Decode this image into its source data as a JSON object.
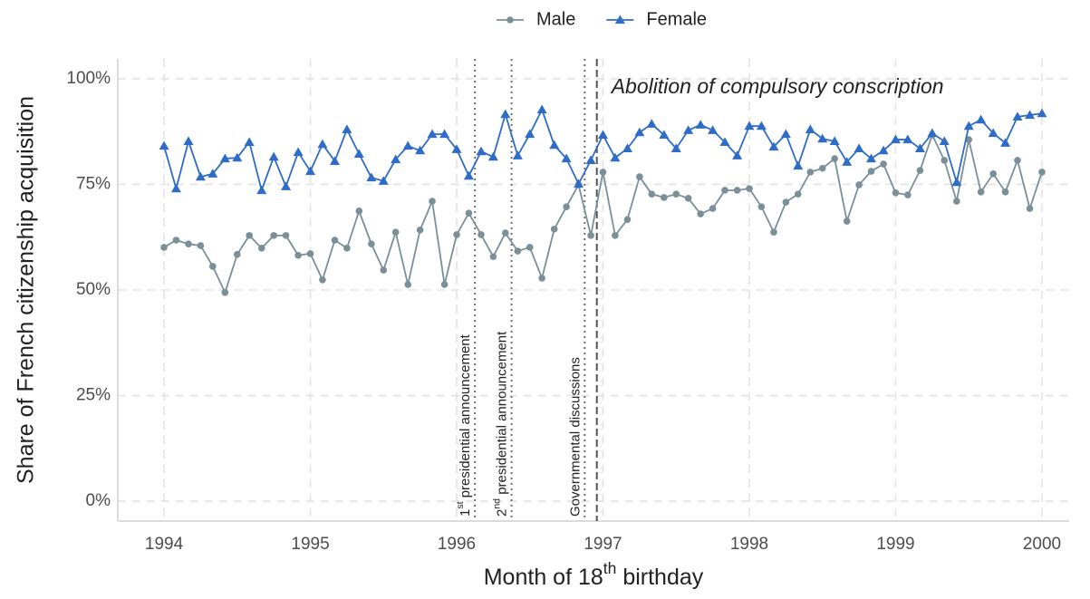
{
  "chart_data": {
    "type": "line",
    "ylabel": "Share of French citizenship acquisition",
    "xlabel": [
      {
        "text": "Month of 18"
      },
      {
        "text": "th",
        "sup": true
      },
      {
        "text": " birthday"
      }
    ],
    "x": [
      1994.0,
      1994.083,
      1994.167,
      1994.25,
      1994.333,
      1994.417,
      1994.5,
      1994.583,
      1994.667,
      1994.75,
      1994.833,
      1994.917,
      1995.0,
      1995.083,
      1995.167,
      1995.25,
      1995.333,
      1995.417,
      1995.5,
      1995.583,
      1995.667,
      1995.75,
      1995.833,
      1995.917,
      1996.0,
      1996.083,
      1996.167,
      1996.25,
      1996.333,
      1996.417,
      1996.5,
      1996.583,
      1996.667,
      1996.75,
      1996.833,
      1996.917,
      1997.0,
      1997.083,
      1997.167,
      1997.25,
      1997.333,
      1997.417,
      1997.5,
      1997.583,
      1997.667,
      1997.75,
      1997.833,
      1997.917,
      1998.0,
      1998.083,
      1998.167,
      1998.25,
      1998.333,
      1998.417,
      1998.5,
      1998.583,
      1998.667,
      1998.75,
      1998.833,
      1998.917,
      1999.0,
      1999.083,
      1999.167,
      1999.25,
      1999.333,
      1999.417,
      1999.5,
      1999.583,
      1999.667,
      1999.75,
      1999.833,
      1999.917,
      2000.0
    ],
    "series": [
      {
        "name": "Male",
        "color": "#7b8f99",
        "marker": "circle",
        "values": [
          60.1,
          61.8,
          60.9,
          60.5,
          55.6,
          49.4,
          58.4,
          62.9,
          59.9,
          62.9,
          62.9,
          58.2,
          58.6,
          52.4,
          61.8,
          59.9,
          68.7,
          60.9,
          54.7,
          63.7,
          51.3,
          64.2,
          71.0,
          51.3,
          63.1,
          68.2,
          63.1,
          57.9,
          63.5,
          59.2,
          60.1,
          52.8,
          64.4,
          69.7,
          74.9,
          62.9,
          77.9,
          62.9,
          66.7,
          76.8,
          72.7,
          71.9,
          72.7,
          71.7,
          68.0,
          69.3,
          73.6,
          73.6,
          74.0,
          69.7,
          63.7,
          70.8,
          72.7,
          77.9,
          78.8,
          81.1,
          66.3,
          74.9,
          78.1,
          79.8,
          73.0,
          72.5,
          78.3,
          86.7,
          80.7,
          71.0,
          85.6,
          73.2,
          77.5,
          73.2,
          80.7,
          69.3,
          77.9
        ]
      },
      {
        "name": "Female",
        "color": "#2f6cc7",
        "marker": "triangle",
        "values": [
          84.1,
          74.0,
          85.2,
          76.8,
          77.5,
          81.1,
          81.3,
          85.0,
          73.6,
          81.5,
          74.5,
          82.6,
          78.1,
          84.5,
          80.5,
          88.0,
          82.2,
          76.6,
          75.8,
          80.9,
          84.1,
          83.0,
          86.9,
          86.9,
          83.3,
          77.0,
          82.8,
          81.5,
          91.6,
          81.8,
          86.9,
          92.7,
          84.3,
          81.1,
          75.1,
          80.7,
          86.7,
          81.3,
          83.5,
          87.3,
          89.3,
          86.7,
          83.5,
          87.8,
          89.1,
          87.8,
          85.0,
          81.8,
          88.8,
          88.8,
          83.9,
          86.9,
          79.4,
          88.0,
          85.8,
          85.2,
          80.3,
          83.5,
          81.1,
          83.0,
          85.6,
          85.6,
          83.5,
          87.1,
          85.2,
          75.5,
          88.8,
          90.3,
          87.1,
          84.8,
          91.0,
          91.4,
          91.8
        ]
      }
    ],
    "xlim": [
      1993.684,
      2000.186
    ],
    "xticks": [
      1994,
      1995,
      1996,
      1997,
      1998,
      1999,
      2000
    ],
    "ylim": [
      -4.7,
      104.7
    ],
    "yticks": [
      {
        "value": 0,
        "label": "0%"
      },
      {
        "value": 25,
        "label": "25%"
      },
      {
        "value": 50,
        "label": "50%"
      },
      {
        "value": 75,
        "label": "75%"
      },
      {
        "value": 100,
        "label": "100%"
      }
    ],
    "grid": true,
    "legend": "top",
    "events": [
      {
        "x": 1996.125,
        "linestyle": "dotted",
        "label_pos": "vertical",
        "label": [
          {
            "text": "1"
          },
          {
            "text": "st",
            "sup": true
          },
          {
            "text": " presidential announcement"
          }
        ]
      },
      {
        "x": 1996.375,
        "linestyle": "dotted",
        "label_pos": "vertical",
        "label": [
          {
            "text": "2"
          },
          {
            "text": "nd",
            "sup": true
          },
          {
            "text": " presidential announcement"
          }
        ]
      },
      {
        "x": 1996.875,
        "linestyle": "dotted",
        "label_pos": "vertical",
        "label": [
          {
            "text": "Governmental discussions"
          }
        ]
      },
      {
        "x": 1996.958,
        "linestyle": "dashed",
        "label_pos": "top",
        "label": [
          {
            "text": "Abolition of compulsory conscription"
          }
        ]
      }
    ]
  }
}
